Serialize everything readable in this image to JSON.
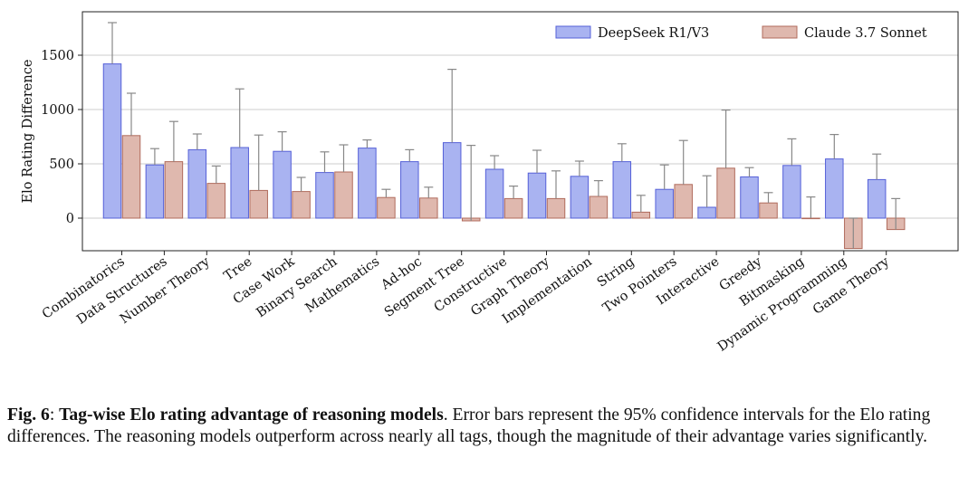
{
  "colors": {
    "deepseek_fill": "#a9b3f1",
    "deepseek_edge": "#5560d8",
    "claude_fill": "#dfb8ae",
    "claude_edge": "#b06b5c",
    "error_bar": "#888888",
    "grid": "#cccccc"
  },
  "chart_data": {
    "type": "bar",
    "ylabel": "Elo Rating Difference",
    "ylim": [
      -300,
      1900
    ],
    "yticks": [
      0,
      500,
      1000,
      1500
    ],
    "grid": "horizontal",
    "legend_position": "top-right",
    "categories": [
      "Combinatorics",
      "Data Structures",
      "Number Theory",
      "Tree",
      "Case Work",
      "Binary Search",
      "Mathematics",
      "Ad-hoc",
      "Segment Tree",
      "Constructive",
      "Graph Theory",
      "Implementation",
      "String",
      "Two Pointers",
      "Interactive",
      "Greedy",
      "Bitmasking",
      "Dynamic Programming",
      "Game Theory"
    ],
    "series": [
      {
        "name": "DeepSeek R1/V3",
        "values": [
          1420,
          490,
          630,
          650,
          615,
          420,
          645,
          520,
          695,
          450,
          415,
          385,
          520,
          265,
          100,
          380,
          485,
          545,
          355
        ],
        "error_upper": [
          1800,
          640,
          775,
          1190,
          795,
          610,
          720,
          630,
          1370,
          575,
          625,
          525,
          685,
          490,
          390,
          465,
          730,
          770,
          590
        ]
      },
      {
        "name": "Claude 3.7 Sonnet",
        "values": [
          760,
          520,
          320,
          255,
          245,
          425,
          190,
          185,
          -25,
          180,
          180,
          200,
          55,
          310,
          460,
          140,
          0,
          -280,
          -105
        ],
        "error_upper": [
          1150,
          890,
          480,
          765,
          375,
          675,
          265,
          285,
          670,
          295,
          435,
          345,
          210,
          715,
          995,
          235,
          195,
          0,
          180
        ]
      }
    ]
  },
  "caption": {
    "label": "Fig. 6",
    "sep": ": ",
    "bold_title": "Tag-wise Elo rating advantage of reasoning models",
    "text": ". Error bars represent the 95% confidence intervals for the Elo rating differences. The reasoning models outperform across nearly all tags, though the magnitude of their advantage varies significantly."
  }
}
